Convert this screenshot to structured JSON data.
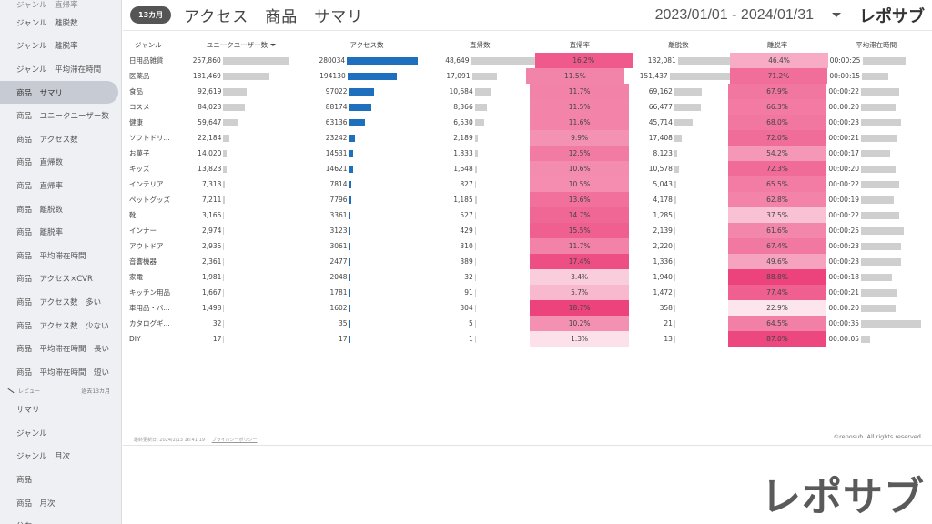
{
  "sidebar": {
    "items": [
      {
        "label": "ジャンル　直帰率",
        "type": "cut"
      },
      {
        "label": "ジャンル　離脱数"
      },
      {
        "label": "ジャンル　離脱率"
      },
      {
        "label": "ジャンル　平均滞在時間"
      },
      {
        "label": "商品　サマリ",
        "type": "active"
      },
      {
        "label": "商品　ユニークユーザー数"
      },
      {
        "label": "商品　アクセス数"
      },
      {
        "label": "商品　直帰数"
      },
      {
        "label": "商品　直帰率"
      },
      {
        "label": "商品　離脱数"
      },
      {
        "label": "商品　離脱率"
      },
      {
        "label": "商品　平均滞在時間"
      },
      {
        "label": "商品　アクセス×CVR"
      },
      {
        "label": "商品　アクセス数　多い"
      },
      {
        "label": "商品　アクセス数　少ない"
      },
      {
        "label": "商品　平均滞在時間　長い"
      },
      {
        "label": "商品　平均滞在時間　短い"
      },
      {
        "section": "レビュー",
        "note": "過去13カ月"
      },
      {
        "label": "サマリ"
      },
      {
        "label": "ジャンル"
      },
      {
        "label": "ジャンル　月次"
      },
      {
        "label": "商品"
      },
      {
        "label": "商品　月次"
      },
      {
        "label": "分布"
      }
    ]
  },
  "header": {
    "badge": "13カ月",
    "title": "アクセス　商品　サマリ",
    "date_range": "2023/01/01 - 2024/01/31",
    "brand": "レポサブ"
  },
  "table": {
    "columns": [
      "ジャンル",
      "ユニークユーザー数",
      "アクセス数",
      "直帰数",
      "直帰率",
      "離脱数",
      "離脱率",
      "平均滞在時間"
    ],
    "rows": [
      {
        "name": "日用品雑貨",
        "uu": "257,860",
        "uu_v": 257860,
        "ac": "280034",
        "ac_v": 280034,
        "dr": "48,649",
        "dr_v": 48649,
        "drr": "16.2%",
        "drr_v": 16.2,
        "ex": "132,081",
        "ex_v": 132081,
        "exr": "46.4%",
        "exr_v": 46.4,
        "avg": "00:00:25",
        "avg_v": 25
      },
      {
        "name": "医薬品",
        "uu": "181,469",
        "uu_v": 181469,
        "ac": "194130",
        "ac_v": 194130,
        "dr": "17,091",
        "dr_v": 17091,
        "drr": "11.5%",
        "drr_v": 11.5,
        "ex": "151,437",
        "ex_v": 151437,
        "exr": "71.2%",
        "exr_v": 71.2,
        "avg": "00:00:15",
        "avg_v": 15
      },
      {
        "name": "食品",
        "uu": "92,619",
        "uu_v": 92619,
        "ac": "97022",
        "ac_v": 97022,
        "dr": "10,684",
        "dr_v": 10684,
        "drr": "11.7%",
        "drr_v": 11.7,
        "ex": "69,162",
        "ex_v": 69162,
        "exr": "67.9%",
        "exr_v": 67.9,
        "avg": "00:00:22",
        "avg_v": 22
      },
      {
        "name": "コスメ",
        "uu": "84,023",
        "uu_v": 84023,
        "ac": "88174",
        "ac_v": 88174,
        "dr": "8,366",
        "dr_v": 8366,
        "drr": "11.5%",
        "drr_v": 11.5,
        "ex": "66,477",
        "ex_v": 66477,
        "exr": "66.3%",
        "exr_v": 66.3,
        "avg": "00:00:20",
        "avg_v": 20
      },
      {
        "name": "健康",
        "uu": "59,647",
        "uu_v": 59647,
        "ac": "63136",
        "ac_v": 63136,
        "dr": "6,530",
        "dr_v": 6530,
        "drr": "11.6%",
        "drr_v": 11.6,
        "ex": "45,714",
        "ex_v": 45714,
        "exr": "68.0%",
        "exr_v": 68.0,
        "avg": "00:00:23",
        "avg_v": 23
      },
      {
        "name": "ソフトドリ...",
        "uu": "22,184",
        "uu_v": 22184,
        "ac": "23242",
        "ac_v": 23242,
        "dr": "2,189",
        "dr_v": 2189,
        "drr": "9.9%",
        "drr_v": 9.9,
        "ex": "17,408",
        "ex_v": 17408,
        "exr": "72.0%",
        "exr_v": 72.0,
        "avg": "00:00:21",
        "avg_v": 21
      },
      {
        "name": "お菓子",
        "uu": "14,020",
        "uu_v": 14020,
        "ac": "14531",
        "ac_v": 14531,
        "dr": "1,833",
        "dr_v": 1833,
        "drr": "12.5%",
        "drr_v": 12.5,
        "ex": "8,123",
        "ex_v": 8123,
        "exr": "54.2%",
        "exr_v": 54.2,
        "avg": "00:00:17",
        "avg_v": 17
      },
      {
        "name": "キッズ",
        "uu": "13,823",
        "uu_v": 13823,
        "ac": "14621",
        "ac_v": 14621,
        "dr": "1,648",
        "dr_v": 1648,
        "drr": "10.6%",
        "drr_v": 10.6,
        "ex": "10,578",
        "ex_v": 10578,
        "exr": "72.3%",
        "exr_v": 72.3,
        "avg": "00:00:20",
        "avg_v": 20
      },
      {
        "name": "インテリア",
        "uu": "7,313",
        "uu_v": 7313,
        "ac": "7814",
        "ac_v": 7814,
        "dr": "827",
        "dr_v": 827,
        "drr": "10.5%",
        "drr_v": 10.5,
        "ex": "5,043",
        "ex_v": 5043,
        "exr": "65.5%",
        "exr_v": 65.5,
        "avg": "00:00:22",
        "avg_v": 22
      },
      {
        "name": "ペットグッズ",
        "uu": "7,211",
        "uu_v": 7211,
        "ac": "7796",
        "ac_v": 7796,
        "dr": "1,185",
        "dr_v": 1185,
        "drr": "13.6%",
        "drr_v": 13.6,
        "ex": "4,178",
        "ex_v": 4178,
        "exr": "62.8%",
        "exr_v": 62.8,
        "avg": "00:00:19",
        "avg_v": 19
      },
      {
        "name": "靴",
        "uu": "3,165",
        "uu_v": 3165,
        "ac": "3361",
        "ac_v": 3361,
        "dr": "527",
        "dr_v": 527,
        "drr": "14.7%",
        "drr_v": 14.7,
        "ex": "1,285",
        "ex_v": 1285,
        "exr": "37.5%",
        "exr_v": 37.5,
        "avg": "00:00:22",
        "avg_v": 22
      },
      {
        "name": "インナー",
        "uu": "2,974",
        "uu_v": 2974,
        "ac": "3123",
        "ac_v": 3123,
        "dr": "429",
        "dr_v": 429,
        "drr": "15.5%",
        "drr_v": 15.5,
        "ex": "2,139",
        "ex_v": 2139,
        "exr": "61.6%",
        "exr_v": 61.6,
        "avg": "00:00:25",
        "avg_v": 25
      },
      {
        "name": "アウトドア",
        "uu": "2,935",
        "uu_v": 2935,
        "ac": "3061",
        "ac_v": 3061,
        "dr": "310",
        "dr_v": 310,
        "drr": "11.7%",
        "drr_v": 11.7,
        "ex": "2,220",
        "ex_v": 2220,
        "exr": "67.4%",
        "exr_v": 67.4,
        "avg": "00:00:23",
        "avg_v": 23
      },
      {
        "name": "音響機器",
        "uu": "2,361",
        "uu_v": 2361,
        "ac": "2477",
        "ac_v": 2477,
        "dr": "389",
        "dr_v": 389,
        "drr": "17.4%",
        "drr_v": 17.4,
        "ex": "1,336",
        "ex_v": 1336,
        "exr": "49.6%",
        "exr_v": 49.6,
        "avg": "00:00:23",
        "avg_v": 23
      },
      {
        "name": "家電",
        "uu": "1,981",
        "uu_v": 1981,
        "ac": "2048",
        "ac_v": 2048,
        "dr": "32",
        "dr_v": 32,
        "drr": "3.4%",
        "drr_v": 3.4,
        "ex": "1,940",
        "ex_v": 1940,
        "exr": "88.8%",
        "exr_v": 88.8,
        "avg": "00:00:18",
        "avg_v": 18
      },
      {
        "name": "キッチン用品",
        "uu": "1,667",
        "uu_v": 1667,
        "ac": "1781",
        "ac_v": 1781,
        "dr": "91",
        "dr_v": 91,
        "drr": "5.7%",
        "drr_v": 5.7,
        "ex": "1,472",
        "ex_v": 1472,
        "exr": "77.4%",
        "exr_v": 77.4,
        "avg": "00:00:21",
        "avg_v": 21
      },
      {
        "name": "車用品・バ...",
        "uu": "1,498",
        "uu_v": 1498,
        "ac": "1602",
        "ac_v": 1602,
        "dr": "304",
        "dr_v": 304,
        "drr": "18.7%",
        "drr_v": 18.7,
        "ex": "358",
        "ex_v": 358,
        "exr": "22.9%",
        "exr_v": 22.9,
        "avg": "00:00:20",
        "avg_v": 20
      },
      {
        "name": "カタログギ...",
        "uu": "32",
        "uu_v": 32,
        "ac": "35",
        "ac_v": 35,
        "dr": "5",
        "dr_v": 5,
        "drr": "10.2%",
        "drr_v": 10.2,
        "ex": "21",
        "ex_v": 21,
        "exr": "64.5%",
        "exr_v": 64.5,
        "avg": "00:00:35",
        "avg_v": 35
      },
      {
        "name": "DIY",
        "uu": "17",
        "uu_v": 17,
        "ac": "17",
        "ac_v": 17,
        "dr": "1",
        "dr_v": 1,
        "drr": "1.3%",
        "drr_v": 1.3,
        "ex": "13",
        "ex_v": 13,
        "exr": "87.0%",
        "exr_v": 87.0,
        "avg": "00:00:05",
        "avg_v": 5
      }
    ]
  },
  "footer": {
    "updated": "最終更新日: 2024/2/13 16:41:19",
    "privacy": "プライバシーポリシー",
    "copyright": "©reposub. All rights reserved."
  },
  "watermark": "レポサブ",
  "colors": {
    "bar_gray": "#cfcfcf",
    "bar_blue": "#1f6fbf",
    "heat_low": "#fde6ee",
    "heat_high": "#ec407a",
    "badge_bg": "#555555"
  }
}
